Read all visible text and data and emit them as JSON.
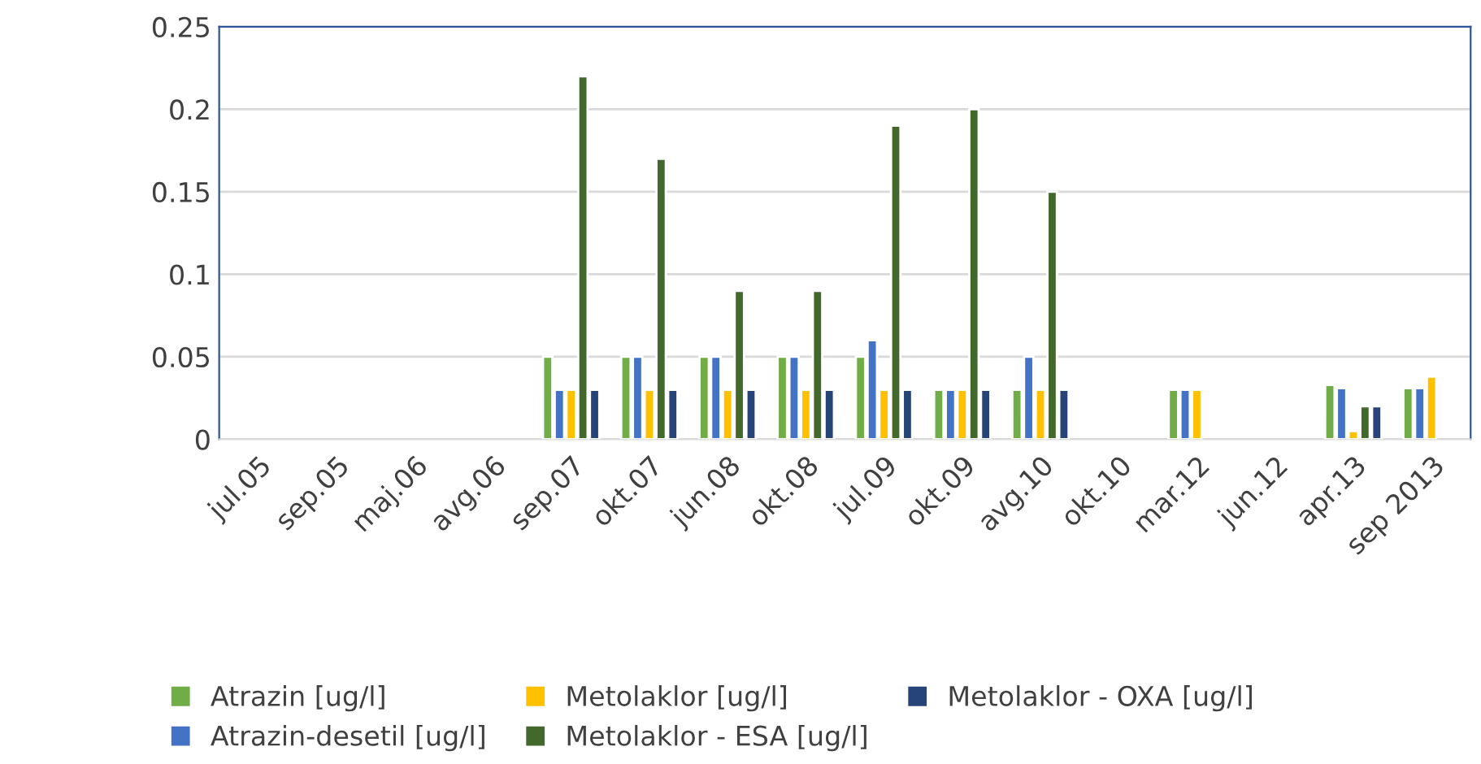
{
  "chart_data": {
    "type": "bar",
    "categories": [
      "jul.05",
      "sep.05",
      "maj.06",
      "avg.06",
      "sep.07",
      "okt.07",
      "jun.08",
      "okt.08",
      "jul.09",
      "okt.09",
      "avg.10",
      "okt.10",
      "mar.12",
      "jun.12",
      "apr.13",
      "sep 2013"
    ],
    "series": [
      {
        "name": "Atrazin [ug/l]",
        "color": "#70ad47",
        "values": [
          null,
          null,
          null,
          null,
          0.05,
          0.05,
          0.05,
          0.05,
          0.05,
          0.03,
          0.03,
          null,
          0.03,
          null,
          0.033,
          0.031
        ]
      },
      {
        "name": "Atrazin-desetil [ug/l]",
        "color": "#4472c4",
        "values": [
          null,
          null,
          null,
          null,
          0.03,
          0.05,
          0.05,
          0.05,
          0.06,
          0.03,
          0.05,
          null,
          0.03,
          null,
          0.031,
          0.031
        ]
      },
      {
        "name": "Metolaklor [ug/l]",
        "color": "#ffc000",
        "values": [
          null,
          null,
          null,
          null,
          0.03,
          0.03,
          0.03,
          0.03,
          0.03,
          0.03,
          0.03,
          null,
          0.03,
          null,
          0.005,
          0.038
        ]
      },
      {
        "name": "Metolaklor - ESA [ug/l]",
        "color": "#43682b",
        "values": [
          null,
          null,
          null,
          null,
          0.22,
          0.17,
          0.09,
          0.09,
          0.19,
          0.2,
          0.15,
          null,
          null,
          null,
          0.02,
          null
        ]
      },
      {
        "name": "Metolaklor - OXA [ug/l]",
        "color": "#264478",
        "values": [
          null,
          null,
          null,
          null,
          0.03,
          0.03,
          0.03,
          0.03,
          0.03,
          0.03,
          0.03,
          null,
          null,
          null,
          0.02,
          null
        ]
      }
    ],
    "ylim": [
      0,
      0.25
    ],
    "yticks": [
      0,
      0.05,
      0.1,
      0.15,
      0.2,
      0.25
    ],
    "grid": "y",
    "legend": "bottom"
  }
}
